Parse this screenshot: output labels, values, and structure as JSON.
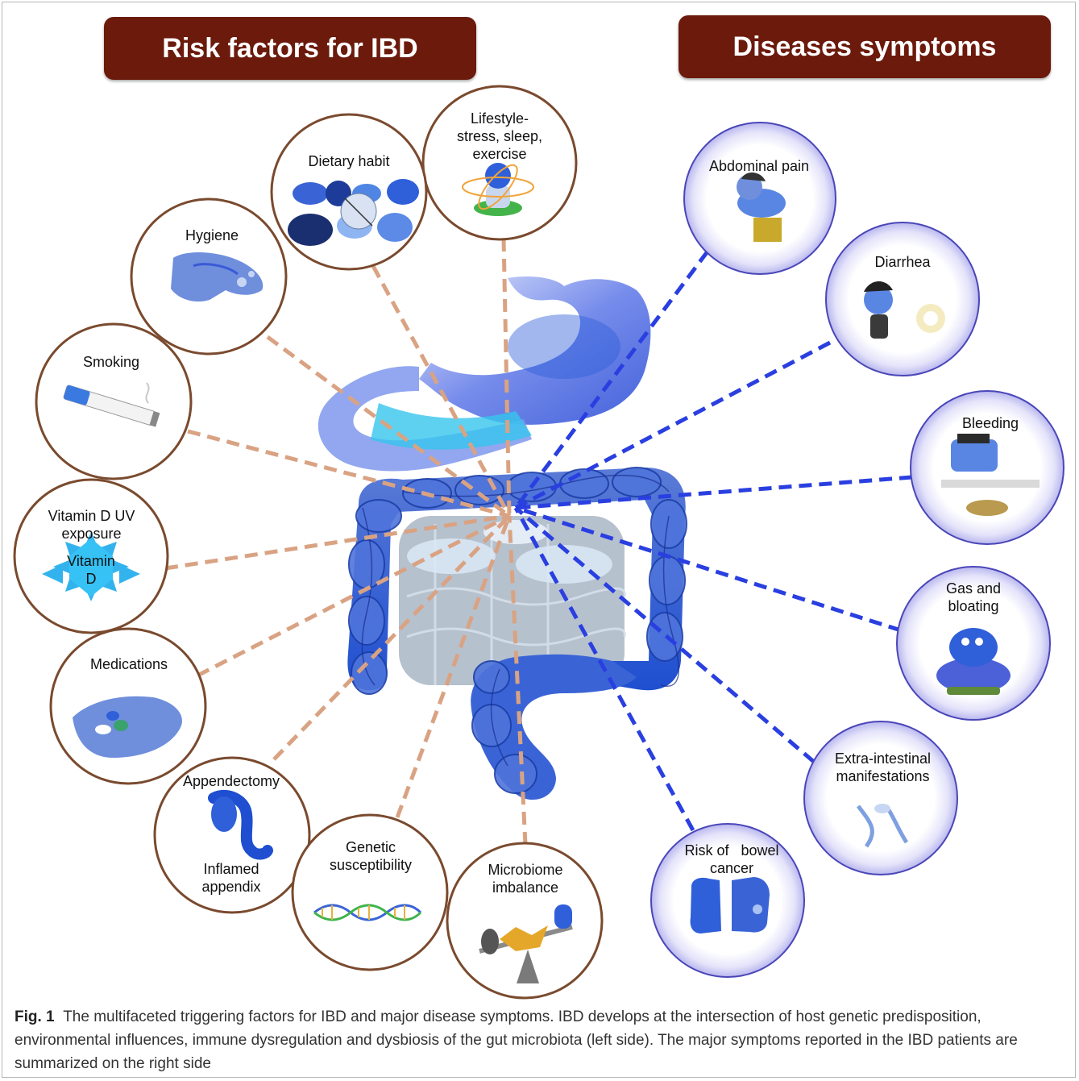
{
  "headers": {
    "left": "Risk factors for IBD",
    "right": "Diseases symptoms"
  },
  "risk_factors": [
    {
      "id": "lifestyle",
      "label": "Lifestyle-\nstress, sleep,\nexercise"
    },
    {
      "id": "dietary",
      "label": "Dietary habit"
    },
    {
      "id": "hygiene",
      "label": "Hygiene"
    },
    {
      "id": "smoking",
      "label": "Smoking"
    },
    {
      "id": "vitamin-d",
      "label": "Vitamin D UV\nexposure",
      "inner": "Vitamin\nD"
    },
    {
      "id": "medications",
      "label": "Medications"
    },
    {
      "id": "appendectomy",
      "label": "Appendectomy",
      "bottom": "Inflamed\nappendix"
    },
    {
      "id": "genetic",
      "label": "Genetic\nsusceptibility"
    },
    {
      "id": "microbiome",
      "label": "Microbiome\nimbalance"
    }
  ],
  "symptoms": [
    {
      "id": "abdominal-pain",
      "label": "Abdominal pain"
    },
    {
      "id": "diarrhea",
      "label": "Diarrhea"
    },
    {
      "id": "bleeding",
      "label": "Bleeding"
    },
    {
      "id": "gas-bloating",
      "label": "Gas and\nbloating"
    },
    {
      "id": "extra-intestinal",
      "label": "Extra-intestinal\nmanifestations"
    },
    {
      "id": "bowel-cancer",
      "label": "Risk of   bowel\ncancer"
    }
  ],
  "colors": {
    "header_bg": "#6b1a0c",
    "risk_border": "#7a4a2e",
    "risk_line": "#d9a383",
    "symptom_line": "#2a3fe0",
    "symptom_fill": "#c9c8f2",
    "gut_blue": "#2f5fd9"
  },
  "caption": {
    "label": "Fig. 1",
    "text": "The multifaceted triggering factors for IBD and major disease symptoms. IBD develops at the intersection of host genetic predisposition, environmental influences, immune dysregulation and dysbiosis of the gut microbiota (left side). The major symptoms reported in the IBD patients are summarized on the right side"
  }
}
